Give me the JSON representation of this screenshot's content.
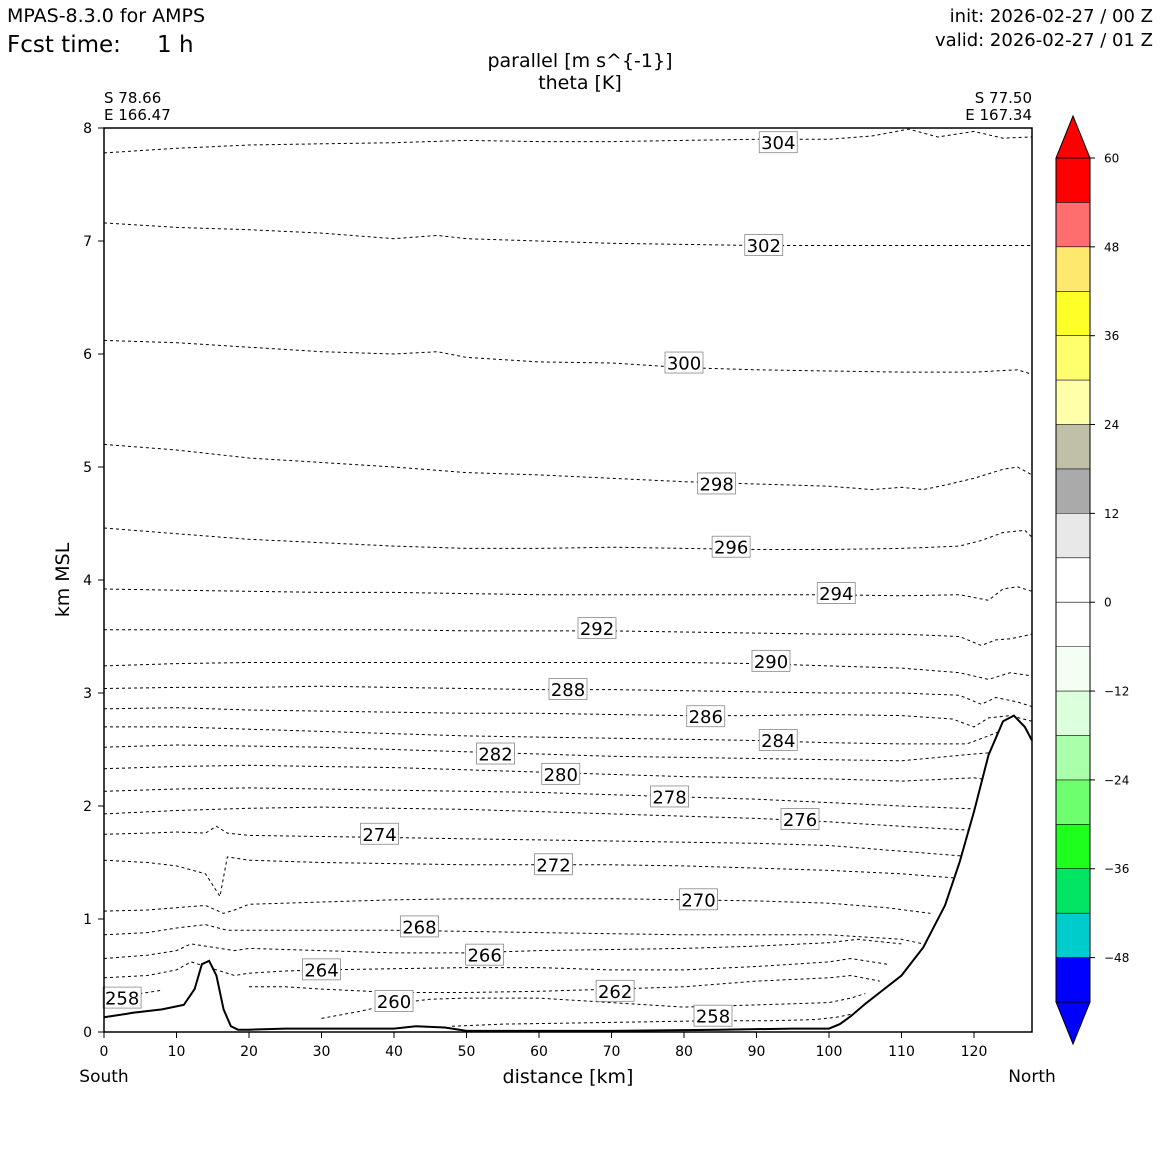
{
  "header": {
    "model": "MPAS-8.3.0 for AMPS",
    "fcst_label": "Fcst time:",
    "fcst_value": "1 h",
    "init": "init: 2026-02-27 / 00 Z",
    "valid": "valid: 2026-02-27 / 01 Z"
  },
  "chart_data": {
    "type": "line",
    "title": "parallel [m s^{-1}]",
    "subtitle": "theta [K]",
    "xlabel": "distance [km]",
    "ylabel": "km MSL",
    "xlim": [
      0,
      128
    ],
    "ylim": [
      0,
      8
    ],
    "x_ticks": [
      0,
      10,
      20,
      30,
      40,
      50,
      60,
      70,
      80,
      90,
      100,
      110,
      120
    ],
    "y_ticks": [
      0,
      1,
      2,
      3,
      4,
      5,
      6,
      7,
      8
    ],
    "start_point": {
      "lat": "S 78.66",
      "lon": "E 166.47"
    },
    "end_point": {
      "lat": "S 77.50",
      "lon": "E 167.34"
    },
    "left_end_label": "South",
    "right_end_label": "North",
    "terrain": {
      "x": [
        0,
        4,
        8,
        11,
        12.5,
        13.5,
        14.5,
        15.5,
        16.5,
        17.5,
        18.5,
        20,
        25,
        40,
        43,
        47,
        50,
        55,
        70,
        85,
        95,
        100,
        101.5,
        103,
        105,
        107,
        110,
        113,
        116,
        118,
        120,
        122,
        124,
        125.5,
        127,
        128
      ],
      "z": [
        0.13,
        0.17,
        0.2,
        0.24,
        0.38,
        0.6,
        0.63,
        0.5,
        0.2,
        0.05,
        0.02,
        0.02,
        0.03,
        0.03,
        0.05,
        0.04,
        0.01,
        0.01,
        0.01,
        0.02,
        0.03,
        0.03,
        0.07,
        0.14,
        0.25,
        0.35,
        0.5,
        0.75,
        1.12,
        1.5,
        1.95,
        2.45,
        2.75,
        2.8,
        2.7,
        2.58
      ]
    },
    "theta_contours": [
      {
        "value": 258,
        "label": "258",
        "label_x": 84,
        "label_z": 0.14,
        "x": [
          0,
          2,
          4,
          6,
          8
        ],
        "z": [
          0.28,
          0.3,
          0.33,
          0.35,
          0.37
        ]
      },
      {
        "value": 258,
        "label": "258",
        "label_x": 2.5,
        "label_z": 0.3,
        "x": [
          48,
          55,
          65,
          75,
          84,
          92,
          98,
          101,
          104,
          106
        ],
        "z": [
          0.05,
          0.07,
          0.08,
          0.09,
          0.1,
          0.1,
          0.11,
          0.13,
          0.17,
          0.22
        ]
      },
      {
        "value": 260,
        "label": "260",
        "label_x": 40,
        "label_z": 0.27,
        "x": [
          30,
          35,
          40,
          45,
          50,
          55,
          60,
          70,
          80,
          90,
          100,
          103,
          105
        ],
        "z": [
          0.12,
          0.18,
          0.25,
          0.29,
          0.3,
          0.3,
          0.3,
          0.26,
          0.22,
          0.24,
          0.26,
          0.3,
          0.34
        ]
      },
      {
        "value": 262,
        "label": "262",
        "label_x": 70.5,
        "label_z": 0.36,
        "x": [
          20,
          25,
          30,
          40,
          50,
          60,
          70,
          80,
          90,
          100,
          103,
          107
        ],
        "z": [
          0.4,
          0.4,
          0.38,
          0.35,
          0.35,
          0.36,
          0.38,
          0.4,
          0.45,
          0.48,
          0.5,
          0.45
        ]
      },
      {
        "value": 264,
        "label": "264",
        "label_x": 30,
        "label_z": 0.55,
        "x": [
          0,
          6,
          10,
          12,
          18,
          20,
          25,
          30,
          40,
          50,
          60,
          70,
          80,
          90,
          100,
          103,
          108
        ],
        "z": [
          0.48,
          0.5,
          0.55,
          0.62,
          0.5,
          0.52,
          0.54,
          0.55,
          0.56,
          0.57,
          0.57,
          0.55,
          0.55,
          0.58,
          0.62,
          0.65,
          0.6
        ]
      },
      {
        "value": 266,
        "label": "266",
        "label_x": 52.5,
        "label_z": 0.68,
        "x": [
          0,
          6,
          10,
          12,
          18,
          20,
          30,
          40,
          50,
          60,
          70,
          80,
          90,
          100,
          104,
          110
        ],
        "z": [
          0.65,
          0.68,
          0.72,
          0.78,
          0.72,
          0.74,
          0.72,
          0.7,
          0.7,
          0.72,
          0.73,
          0.74,
          0.76,
          0.79,
          0.82,
          0.78
        ]
      },
      {
        "value": 268,
        "label": "268",
        "label_x": 43.5,
        "label_z": 0.93,
        "x": [
          0,
          6,
          10,
          14,
          17,
          20,
          30,
          40,
          50,
          60,
          70,
          80,
          90,
          100,
          110,
          113
        ],
        "z": [
          0.86,
          0.88,
          0.92,
          0.95,
          0.9,
          0.9,
          0.9,
          0.9,
          0.89,
          0.88,
          0.87,
          0.86,
          0.86,
          0.86,
          0.82,
          0.78
        ]
      },
      {
        "value": 270,
        "label": "270",
        "label_x": 82,
        "label_z": 1.17,
        "x": [
          0,
          6,
          10,
          14,
          16.5,
          18,
          20,
          30,
          40,
          50,
          60,
          70,
          80,
          90,
          100,
          108,
          114
        ],
        "z": [
          1.07,
          1.08,
          1.1,
          1.12,
          1.05,
          1.08,
          1.13,
          1.15,
          1.17,
          1.18,
          1.18,
          1.18,
          1.17,
          1.16,
          1.14,
          1.1,
          1.05
        ]
      },
      {
        "value": 272,
        "label": "272",
        "label_x": 62,
        "label_z": 1.48,
        "x": [
          0,
          6,
          10,
          14,
          16,
          17,
          20,
          30,
          40,
          50,
          60,
          70,
          80,
          90,
          100,
          110,
          118
        ],
        "z": [
          1.52,
          1.5,
          1.47,
          1.4,
          1.2,
          1.55,
          1.52,
          1.5,
          1.49,
          1.48,
          1.48,
          1.48,
          1.47,
          1.45,
          1.43,
          1.4,
          1.36
        ]
      },
      {
        "value": 274,
        "label": "274",
        "label_x": 38,
        "label_z": 1.75,
        "x": [
          0,
          6,
          10,
          14,
          15.5,
          17,
          20,
          30,
          40,
          50,
          60,
          70,
          80,
          90,
          100,
          110,
          120
        ],
        "z": [
          1.75,
          1.76,
          1.77,
          1.76,
          1.82,
          1.76,
          1.74,
          1.73,
          1.72,
          1.71,
          1.7,
          1.69,
          1.68,
          1.67,
          1.65,
          1.6,
          1.55
        ]
      },
      {
        "value": 276,
        "label": "276",
        "label_x": 96,
        "label_z": 1.88,
        "x": [
          0,
          10,
          20,
          30,
          40,
          50,
          60,
          70,
          80,
          90,
          100,
          110,
          121
        ],
        "z": [
          1.93,
          1.96,
          1.98,
          1.99,
          1.98,
          1.97,
          1.95,
          1.93,
          1.91,
          1.89,
          1.86,
          1.82,
          1.78
        ]
      },
      {
        "value": 278,
        "label": "278",
        "label_x": 78,
        "label_z": 2.08,
        "x": [
          0,
          10,
          20,
          30,
          40,
          50,
          60,
          70,
          80,
          90,
          100,
          110,
          122
        ],
        "z": [
          2.13,
          2.15,
          2.16,
          2.15,
          2.14,
          2.13,
          2.12,
          2.1,
          2.08,
          2.06,
          2.03,
          2.0,
          1.97
        ]
      },
      {
        "value": 280,
        "label": "280",
        "label_x": 63,
        "label_z": 2.28,
        "x": [
          0,
          10,
          20,
          30,
          40,
          50,
          60,
          70,
          80,
          90,
          100,
          110,
          120,
          123
        ],
        "z": [
          2.33,
          2.35,
          2.36,
          2.35,
          2.34,
          2.32,
          2.3,
          2.28,
          2.26,
          2.25,
          2.24,
          2.22,
          2.25,
          2.22
        ]
      },
      {
        "value": 282,
        "label": "282",
        "label_x": 54,
        "label_z": 2.46,
        "x": [
          0,
          10,
          20,
          30,
          40,
          50,
          60,
          70,
          80,
          90,
          100,
          110,
          120,
          124
        ],
        "z": [
          2.52,
          2.54,
          2.53,
          2.52,
          2.5,
          2.48,
          2.46,
          2.44,
          2.43,
          2.42,
          2.41,
          2.4,
          2.46,
          2.48
        ]
      },
      {
        "value": 284,
        "label": "284",
        "label_x": 93,
        "label_z": 2.58,
        "x": [
          0,
          10,
          20,
          30,
          40,
          50,
          60,
          70,
          80,
          90,
          100,
          110,
          119,
          122,
          125
        ],
        "z": [
          2.7,
          2.7,
          2.68,
          2.66,
          2.64,
          2.62,
          2.61,
          2.6,
          2.59,
          2.58,
          2.56,
          2.55,
          2.55,
          2.62,
          2.7
        ]
      },
      {
        "value": 286,
        "label": "286",
        "label_x": 83,
        "label_z": 2.79,
        "x": [
          0,
          10,
          20,
          30,
          40,
          50,
          60,
          70,
          80,
          90,
          100,
          110,
          117,
          120,
          122,
          125,
          128
        ],
        "z": [
          2.86,
          2.87,
          2.85,
          2.84,
          2.83,
          2.82,
          2.82,
          2.81,
          2.8,
          2.8,
          2.81,
          2.8,
          2.77,
          2.7,
          2.78,
          2.8,
          2.75
        ]
      },
      {
        "value": 288,
        "label": "288",
        "label_x": 64,
        "label_z": 3.03,
        "x": [
          0,
          10,
          20,
          30,
          40,
          50,
          60,
          70,
          80,
          90,
          100,
          110,
          118,
          121,
          123,
          126,
          128
        ],
        "z": [
          3.04,
          3.05,
          3.05,
          3.06,
          3.05,
          3.04,
          3.03,
          3.03,
          3.02,
          3.01,
          3.0,
          3.0,
          2.98,
          2.9,
          2.96,
          2.92,
          2.88
        ]
      },
      {
        "value": 290,
        "label": "290",
        "label_x": 92,
        "label_z": 3.28,
        "x": [
          0,
          10,
          20,
          30,
          40,
          50,
          60,
          70,
          80,
          90,
          100,
          110,
          118,
          122,
          125,
          128
        ],
        "z": [
          3.24,
          3.26,
          3.27,
          3.27,
          3.27,
          3.27,
          3.27,
          3.27,
          3.27,
          3.26,
          3.24,
          3.22,
          3.18,
          3.12,
          3.18,
          3.15
        ]
      },
      {
        "value": 292,
        "label": "292",
        "label_x": 68,
        "label_z": 3.57,
        "x": [
          0,
          10,
          20,
          30,
          40,
          50,
          60,
          70,
          80,
          90,
          100,
          110,
          118,
          121,
          123,
          125,
          128
        ],
        "z": [
          3.56,
          3.56,
          3.56,
          3.56,
          3.56,
          3.55,
          3.55,
          3.55,
          3.54,
          3.53,
          3.52,
          3.52,
          3.5,
          3.42,
          3.47,
          3.48,
          3.52
        ]
      },
      {
        "value": 294,
        "label": "294",
        "label_x": 101,
        "label_z": 3.88,
        "x": [
          0,
          10,
          20,
          30,
          40,
          50,
          60,
          70,
          80,
          90,
          100,
          110,
          118,
          122,
          124,
          126,
          128
        ],
        "z": [
          3.92,
          3.91,
          3.9,
          3.89,
          3.89,
          3.88,
          3.87,
          3.87,
          3.87,
          3.87,
          3.87,
          3.86,
          3.87,
          3.82,
          3.92,
          3.94,
          3.9
        ]
      },
      {
        "value": 296,
        "label": "296",
        "label_x": 86.5,
        "label_z": 4.29,
        "x": [
          0,
          10,
          20,
          30,
          40,
          50,
          60,
          70,
          80,
          90,
          100,
          110,
          118,
          121,
          124,
          127,
          128
        ],
        "z": [
          4.46,
          4.41,
          4.36,
          4.33,
          4.3,
          4.28,
          4.28,
          4.29,
          4.28,
          4.27,
          4.27,
          4.28,
          4.3,
          4.35,
          4.42,
          4.44,
          4.38
        ]
      },
      {
        "value": 298,
        "label": "298",
        "label_x": 84.5,
        "label_z": 4.85,
        "x": [
          0,
          10,
          20,
          30,
          40,
          50,
          60,
          70,
          80,
          90,
          100,
          106,
          110,
          113,
          116,
          120,
          124,
          126,
          128
        ],
        "z": [
          5.2,
          5.15,
          5.08,
          5.04,
          5.0,
          4.95,
          4.93,
          4.9,
          4.87,
          4.85,
          4.83,
          4.8,
          4.82,
          4.8,
          4.84,
          4.9,
          4.98,
          5.0,
          4.93
        ]
      },
      {
        "value": 300,
        "label": "300",
        "label_x": 80,
        "label_z": 5.92,
        "x": [
          0,
          10,
          20,
          30,
          40,
          46,
          50,
          60,
          70,
          80,
          90,
          100,
          110,
          120,
          126,
          128
        ],
        "z": [
          6.12,
          6.1,
          6.06,
          6.02,
          6.0,
          6.02,
          5.97,
          5.93,
          5.92,
          5.88,
          5.86,
          5.85,
          5.84,
          5.84,
          5.86,
          5.82
        ]
      },
      {
        "value": 302,
        "label": "302",
        "label_x": 91,
        "label_z": 6.96,
        "x": [
          0,
          10,
          20,
          30,
          40,
          46,
          50,
          60,
          70,
          80,
          90,
          100,
          110,
          120,
          128
        ],
        "z": [
          7.16,
          7.12,
          7.1,
          7.07,
          7.02,
          7.05,
          7.02,
          7.0,
          6.98,
          6.97,
          6.96,
          6.96,
          6.96,
          6.96,
          6.96
        ]
      },
      {
        "value": 304,
        "label": "304",
        "label_x": 93,
        "label_z": 7.87,
        "x": [
          0,
          10,
          20,
          30,
          40,
          50,
          60,
          70,
          80,
          90,
          100,
          106,
          111,
          115,
          120,
          124,
          128
        ],
        "z": [
          7.78,
          7.82,
          7.85,
          7.86,
          7.87,
          7.89,
          7.88,
          7.88,
          7.89,
          7.9,
          7.9,
          7.93,
          7.99,
          7.92,
          7.97,
          7.91,
          7.92
        ]
      }
    ],
    "colorbar": {
      "label_values": [
        60,
        48,
        36,
        24,
        12,
        0,
        -12,
        -24,
        -36,
        -48
      ],
      "tick_labels": [
        "60",
        "48",
        "36",
        "24",
        "12",
        "0",
        "−12",
        "−24",
        "−36",
        "−48"
      ],
      "extend": "both",
      "vmin": -54,
      "vmax": 60,
      "step": 6,
      "colors_top_to_bottom": [
        "#ff0000",
        "#ff6e6e",
        "#ffe86e",
        "#ffff28",
        "#ffff6e",
        "#ffffaa",
        "#c0c0a8",
        "#aaaaaa",
        "#e8e8e8",
        "#ffffff",
        "#ffffff",
        "#f2fff2",
        "#dcffdc",
        "#aaffaa",
        "#6eff6e",
        "#1eff1e",
        "#00e664",
        "#00cccc",
        "#0000ff"
      ],
      "over_color": "#ff0000",
      "under_color": "#0000ff"
    }
  }
}
